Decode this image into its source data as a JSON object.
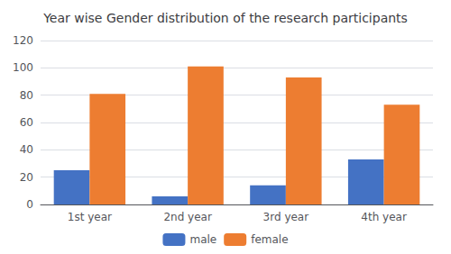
{
  "chart_data": {
    "type": "bar",
    "title": "Year wise Gender distribution of the research participants",
    "categories": [
      "1st year",
      "2nd year",
      "3rd year",
      "4th year"
    ],
    "series": [
      {
        "name": "male",
        "color": "#4472C4",
        "values": [
          25,
          6,
          14,
          33
        ]
      },
      {
        "name": "female",
        "color": "#ED7D31",
        "values": [
          81,
          101,
          93,
          73
        ]
      }
    ],
    "ylim": [
      0,
      120
    ],
    "yticks": [
      0,
      20,
      40,
      60,
      80,
      100,
      120
    ],
    "grid": true,
    "legend": "bottom"
  }
}
